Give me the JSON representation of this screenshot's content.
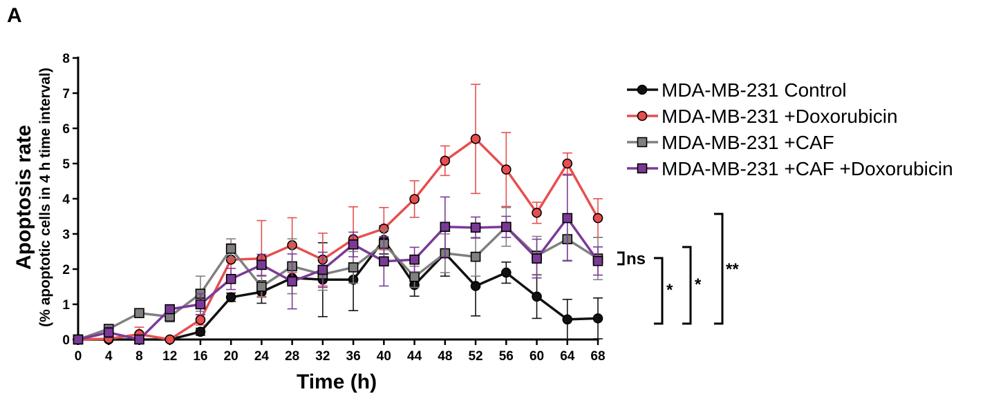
{
  "panel_label": "A",
  "chart_data": {
    "type": "line",
    "xlabel": "Time (h)",
    "ylabel": "Apoptosis rate",
    "ylabel_sub": "(% apoptotic cells in 4 h time interval)",
    "xlim": [
      0,
      68
    ],
    "ylim": [
      0,
      8
    ],
    "x": [
      0,
      4,
      8,
      12,
      16,
      20,
      24,
      28,
      32,
      36,
      40,
      44,
      48,
      52,
      56,
      60,
      64,
      68
    ],
    "x_ticks": [
      "0",
      "4",
      "8",
      "12",
      "16",
      "20",
      "24",
      "28",
      "32",
      "36",
      "40",
      "44",
      "48",
      "52",
      "56",
      "60",
      "64",
      "68"
    ],
    "y_ticks": [
      "0",
      "1",
      "2",
      "3",
      "4",
      "5",
      "6",
      "7",
      "8"
    ],
    "legend_position": "right",
    "series": [
      {
        "name": "MDA-MB-231 Control",
        "color": "#111111",
        "marker": "circle",
        "values": [
          0,
          0,
          0,
          0,
          0.22,
          1.2,
          1.35,
          1.75,
          1.7,
          1.7,
          2.83,
          1.55,
          2.45,
          1.52,
          1.9,
          1.22,
          0.57,
          0.6
        ],
        "errors": [
          0,
          0,
          0,
          0,
          0.1,
          0.12,
          0.32,
          0.45,
          1.05,
          0.88,
          0.4,
          0.32,
          0.65,
          0.85,
          0.3,
          0.62,
          0.57,
          0.58
        ]
      },
      {
        "name": "MDA-MB-231 +Doxorubicin",
        "color": "#e84e4e",
        "marker": "circle",
        "values": [
          0,
          0.02,
          0.15,
          0,
          0.56,
          2.27,
          2.3,
          2.68,
          2.27,
          2.85,
          3.15,
          3.99,
          5.08,
          5.7,
          4.83,
          3.6,
          5.0,
          3.45
        ],
        "errors": [
          0,
          0.05,
          0.2,
          0,
          0.15,
          0.45,
          1.08,
          0.78,
          0.75,
          0.92,
          0.6,
          0.52,
          0.42,
          1.55,
          1.05,
          0.3,
          0.3,
          0.55
        ]
      },
      {
        "name": "MDA-MB-231 +CAF",
        "color": "#808080",
        "marker": "square",
        "values": [
          0,
          0.3,
          0.75,
          0.65,
          1.3,
          2.58,
          1.5,
          2.08,
          1.85,
          2.05,
          2.72,
          1.78,
          2.45,
          2.35,
          3.2,
          2.38,
          2.85,
          2.3
        ],
        "errors": [
          0,
          0.1,
          0.1,
          0.15,
          0.5,
          0.28,
          0.3,
          0.78,
          0.45,
          0.45,
          0.4,
          0.3,
          0.55,
          0.55,
          0.55,
          0.55,
          0.6,
          0.6
        ]
      },
      {
        "name": "MDA-MB-231 +CAF +Doxorubicin",
        "color": "#7b3a96",
        "marker": "square",
        "values": [
          0,
          0.2,
          0,
          0.86,
          1.0,
          1.72,
          2.12,
          1.65,
          1.98,
          2.7,
          2.22,
          2.27,
          3.2,
          3.18,
          3.2,
          2.3,
          3.45,
          2.23
        ],
        "errors": [
          0,
          0.15,
          0,
          0.1,
          0.3,
          0.3,
          0.3,
          0.78,
          0.5,
          0.35,
          0.7,
          0.35,
          0.85,
          0.3,
          0.3,
          0.55,
          1.22,
          0.4
        ]
      }
    ],
    "significance": [
      {
        "label": "ns"
      },
      {
        "label": "*"
      },
      {
        "label": "*"
      },
      {
        "label": "**"
      }
    ]
  }
}
